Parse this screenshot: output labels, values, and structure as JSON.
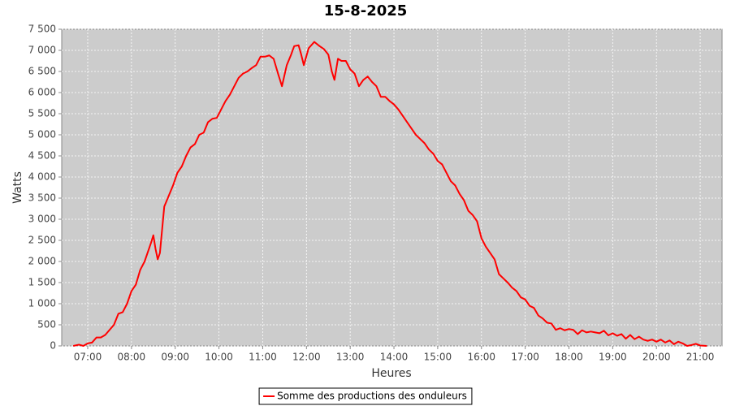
{
  "chart_data": {
    "type": "line",
    "title": "15-8-2025",
    "x_label": "Heures",
    "y_label": "Watts",
    "grid": true,
    "legend": "bottom",
    "background": "#cccccc",
    "xlim": [
      6.406,
      21.5
    ],
    "ylim": [
      0,
      7500
    ],
    "xticks": [
      {
        "value": 7,
        "label": "07:00"
      },
      {
        "value": 8,
        "label": "08:00"
      },
      {
        "value": 9,
        "label": "09:00"
      },
      {
        "value": 10,
        "label": "10:00"
      },
      {
        "value": 11,
        "label": "11:00"
      },
      {
        "value": 12,
        "label": "12:00"
      },
      {
        "value": 13,
        "label": "13:00"
      },
      {
        "value": 14,
        "label": "14:00"
      },
      {
        "value": 15,
        "label": "15:00"
      },
      {
        "value": 16,
        "label": "16:00"
      },
      {
        "value": 17,
        "label": "17:00"
      },
      {
        "value": 18,
        "label": "18:00"
      },
      {
        "value": 19,
        "label": "19:00"
      },
      {
        "value": 20,
        "label": "20:00"
      },
      {
        "value": 21,
        "label": "21:00"
      }
    ],
    "yticks": [
      0,
      500,
      {
        "value": 1000,
        "label": "1 000"
      },
      {
        "value": 1500,
        "label": "1 500"
      },
      {
        "value": 2000,
        "label": "2 000"
      },
      {
        "value": 2500,
        "label": "2 500"
      },
      {
        "value": 3000,
        "label": "3 000"
      },
      {
        "value": 3500,
        "label": "3 500"
      },
      {
        "value": 4000,
        "label": "4 000"
      },
      {
        "value": 4500,
        "label": "4 500"
      },
      {
        "value": 5000,
        "label": "5 000"
      },
      {
        "value": 5500,
        "label": "5 500"
      },
      {
        "value": 6000,
        "label": "6 000"
      },
      {
        "value": 6500,
        "label": "6 500"
      },
      {
        "value": 7000,
        "label": "7 000"
      },
      {
        "value": 7500,
        "label": "7 500"
      }
    ],
    "x": [
      6.67,
      6.8,
      6.9,
      7.0,
      7.1,
      7.2,
      7.3,
      7.4,
      7.5,
      7.6,
      7.7,
      7.8,
      7.9,
      8.0,
      8.1,
      8.2,
      8.3,
      8.4,
      8.45,
      8.5,
      8.55,
      8.6,
      8.65,
      8.75,
      8.85,
      8.95,
      9.05,
      9.15,
      9.25,
      9.35,
      9.45,
      9.55,
      9.65,
      9.75,
      9.85,
      9.95,
      10.05,
      10.15,
      10.25,
      10.35,
      10.45,
      10.55,
      10.65,
      10.75,
      10.85,
      10.95,
      11.05,
      11.15,
      11.25,
      11.35,
      11.44,
      11.55,
      11.65,
      11.72,
      11.82,
      11.88,
      11.94,
      12.05,
      12.18,
      12.3,
      12.4,
      12.5,
      12.58,
      12.64,
      12.72,
      12.8,
      12.9,
      13.0,
      13.1,
      13.2,
      13.3,
      13.4,
      13.5,
      13.6,
      13.7,
      13.8,
      13.9,
      14.0,
      14.1,
      14.2,
      14.3,
      14.4,
      14.5,
      14.6,
      14.7,
      14.8,
      14.9,
      15.0,
      15.1,
      15.2,
      15.3,
      15.4,
      15.5,
      15.6,
      15.7,
      15.8,
      15.9,
      16.0,
      16.1,
      16.2,
      16.3,
      16.4,
      16.5,
      16.6,
      16.7,
      16.8,
      16.9,
      17.0,
      17.1,
      17.2,
      17.3,
      17.4,
      17.5,
      17.6,
      17.7,
      17.8,
      17.9,
      18.0,
      18.1,
      18.2,
      18.3,
      18.4,
      18.5,
      18.6,
      18.7,
      18.8,
      18.9,
      19.0,
      19.1,
      19.2,
      19.3,
      19.4,
      19.5,
      19.6,
      19.7,
      19.8,
      19.9,
      20.0,
      20.1,
      20.2,
      20.3,
      20.4,
      20.5,
      20.6,
      20.7,
      20.8,
      20.9,
      21.0,
      21.15
    ],
    "series": [
      {
        "name": "Somme des productions des onduleurs",
        "color": "#ff0000",
        "values": [
          0,
          30,
          0,
          60,
          80,
          200,
          200,
          260,
          380,
          500,
          760,
          800,
          1000,
          1300,
          1450,
          1800,
          2000,
          2300,
          2450,
          2620,
          2300,
          2050,
          2200,
          3300,
          3550,
          3800,
          4100,
          4250,
          4500,
          4700,
          4780,
          5000,
          5050,
          5300,
          5380,
          5400,
          5600,
          5800,
          5950,
          6150,
          6350,
          6450,
          6500,
          6580,
          6650,
          6850,
          6850,
          6880,
          6800,
          6450,
          6150,
          6650,
          6900,
          7100,
          7120,
          6900,
          6650,
          7050,
          7200,
          7100,
          7030,
          6900,
          6500,
          6300,
          6800,
          6750,
          6750,
          6550,
          6450,
          6150,
          6300,
          6380,
          6250,
          6150,
          5900,
          5900,
          5800,
          5720,
          5600,
          5450,
          5300,
          5150,
          5000,
          4900,
          4800,
          4650,
          4550,
          4380,
          4300,
          4100,
          3900,
          3800,
          3600,
          3450,
          3200,
          3100,
          2950,
          2550,
          2350,
          2200,
          2050,
          1700,
          1600,
          1500,
          1380,
          1300,
          1150,
          1100,
          950,
          900,
          720,
          650,
          550,
          530,
          380,
          420,
          370,
          400,
          380,
          280,
          370,
          320,
          340,
          320,
          300,
          360,
          250,
          300,
          240,
          280,
          170,
          260,
          160,
          220,
          150,
          120,
          150,
          100,
          150,
          80,
          130,
          40,
          100,
          60,
          0,
          20,
          50,
          10,
          0
        ]
      }
    ]
  }
}
